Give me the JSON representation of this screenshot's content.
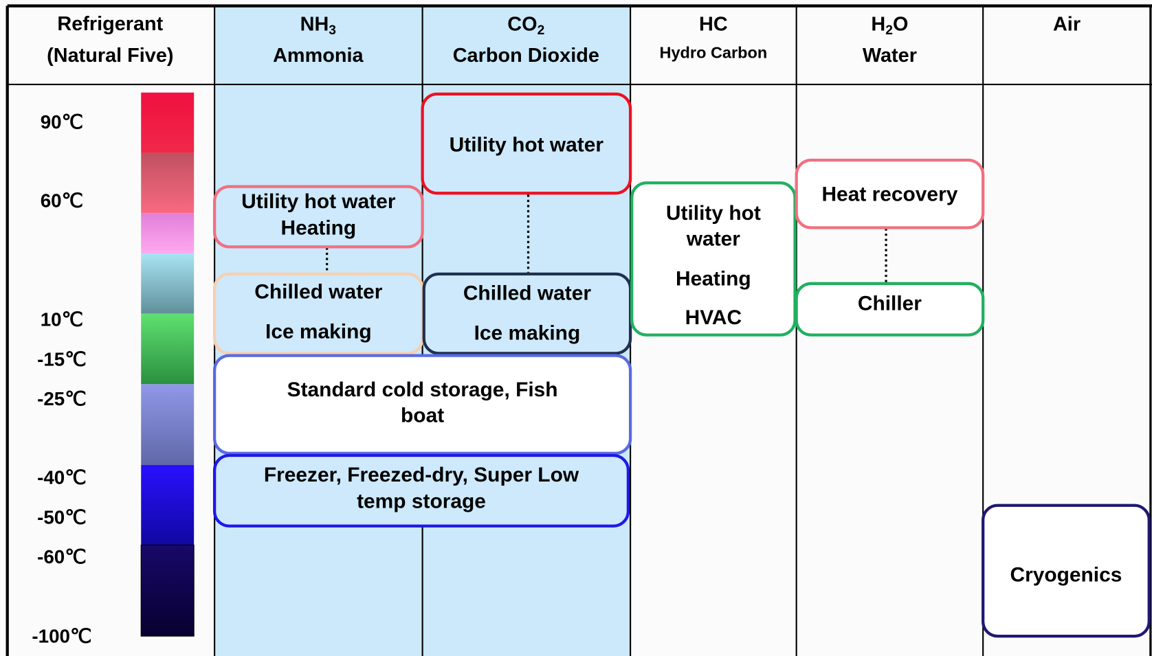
{
  "header": {
    "columns": [
      {
        "lines": [
          "Refrigerant",
          "(Natural Five)"
        ]
      },
      {
        "formula": [
          "NH",
          "3"
        ],
        "name": "Ammonia"
      },
      {
        "formula": [
          "CO",
          "2"
        ],
        "name": "Carbon Dioxide"
      },
      {
        "formula": [
          "HC"
        ],
        "name": "Hydro Carbon"
      },
      {
        "formula": [
          "H",
          "2",
          "O"
        ],
        "name": "Water"
      },
      {
        "formula": [
          "Air"
        ]
      }
    ]
  },
  "temperatures": [
    "90℃",
    "60℃",
    "10℃",
    "-15℃",
    "-25℃",
    "-40℃",
    "-50℃",
    "-60℃",
    "-100℃"
  ],
  "boxes": [
    {
      "lines": [
        "Utility hot water",
        "Heating"
      ]
    },
    {
      "lines": [
        "Utility hot water"
      ]
    },
    {
      "lines": [
        "Chilled water",
        "Ice making"
      ]
    },
    {
      "lines": [
        "Chilled water",
        "Ice making"
      ]
    },
    {
      "lines": [
        "Standard cold storage, Fish",
        "boat"
      ]
    },
    {
      "lines": [
        "Freezer, Freezed-dry, Super Low",
        "temp storage"
      ]
    },
    {
      "lines": [
        "Utility hot",
        "water",
        "Heating",
        "HVAC"
      ]
    },
    {
      "lines": [
        "Heat recovery"
      ]
    },
    {
      "lines": [
        "Chiller"
      ]
    },
    {
      "lines": [
        "Cryogenics"
      ]
    }
  ]
}
